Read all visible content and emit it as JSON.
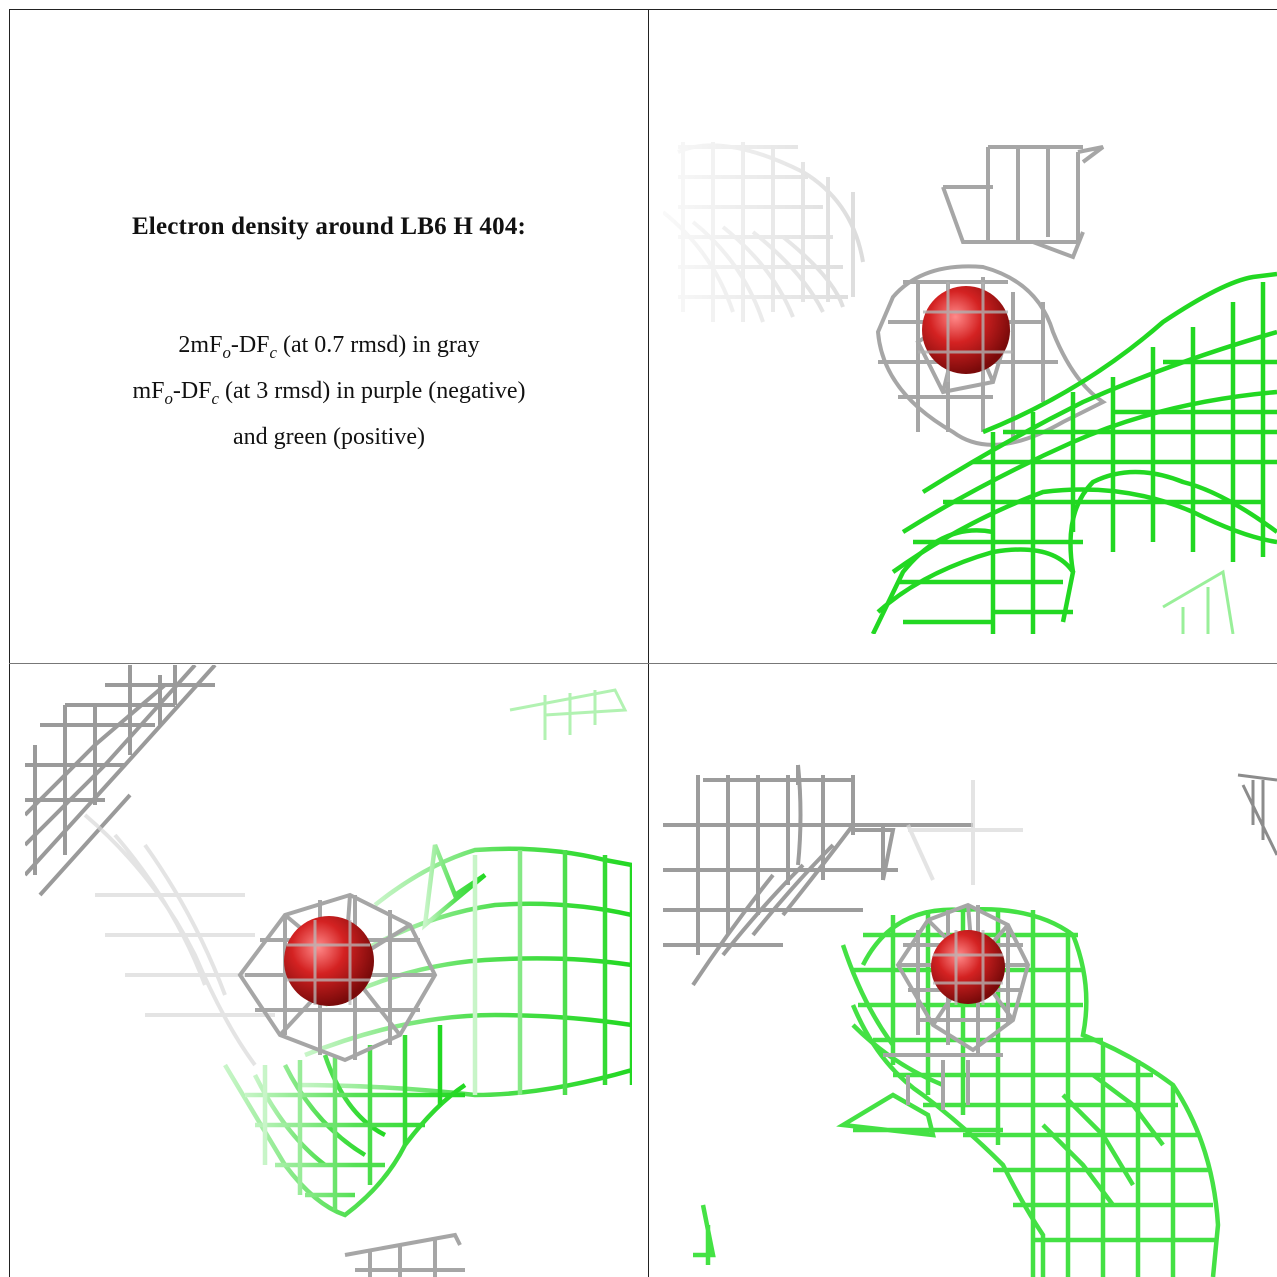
{
  "caption": {
    "title": "Electron density around LB6 H 404:",
    "line1_prefix": "2mF",
    "line1_sub1": "o",
    "line1_mid": "-DF",
    "line1_sub2": "c",
    "line1_suffix": " (at 0.7 rmsd) in gray",
    "line2_prefix": "mF",
    "line2_sub1": "o",
    "line2_mid": "-DF",
    "line2_sub2": "c",
    "line2_suffix": " (at 3 rmsd) in purple (negative)",
    "line3": "and green (positive)"
  },
  "colors": {
    "gray_mesh": "#a9a9a9",
    "green_mesh": "#22dd22",
    "atom_red": "#d02020",
    "border": "#222222"
  },
  "panels": [
    {
      "name": "view-top-right",
      "atom": "red-sphere"
    },
    {
      "name": "view-bottom-left",
      "atom": "red-sphere"
    },
    {
      "name": "view-bottom-right",
      "atom": "red-sphere"
    }
  ]
}
